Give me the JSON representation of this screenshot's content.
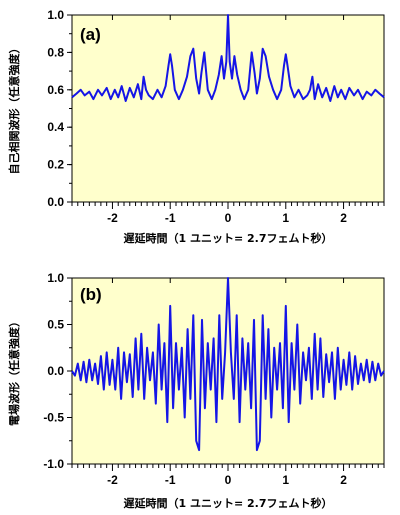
{
  "chart_data": [
    {
      "type": "line",
      "panel_label": "(a)",
      "xlabel": "遅延時間（1 ユニット= 2.7フェムト秒）",
      "ylabel": "自己相関波形（任意強度）",
      "xlim": [
        -2.7,
        2.7
      ],
      "ylim": [
        0.0,
        1.0
      ],
      "x_ticks": [
        -2,
        -1,
        0,
        1,
        2
      ],
      "y_ticks": [
        "0.0",
        "0.2",
        "0.4",
        "0.6",
        "0.8",
        "1.0"
      ],
      "x_tick_labels": [
        "-2",
        "-1",
        "0",
        "1",
        "2"
      ],
      "plot_bg": "#ffffcc",
      "line_color": "#1515e6",
      "grid": false,
      "series": [
        {
          "x": [
            -2.7,
            -2.62,
            -2.55,
            -2.48,
            -2.4,
            -2.33,
            -2.25,
            -2.18,
            -2.1,
            -2.03,
            -1.96,
            -1.9,
            -1.84,
            -1.77,
            -1.7,
            -1.63,
            -1.56,
            -1.5,
            -1.46,
            -1.42,
            -1.37,
            -1.3,
            -1.22,
            -1.15,
            -1.08,
            -1.03,
            -1.0,
            -0.97,
            -0.92,
            -0.85,
            -0.78,
            -0.71,
            -0.65,
            -0.6,
            -0.55,
            -0.5,
            -0.46,
            -0.41,
            -0.35,
            -0.28,
            -0.22,
            -0.16,
            -0.11,
            -0.07,
            -0.03,
            0.0,
            0.03,
            0.07,
            0.11,
            0.16,
            0.22,
            0.28,
            0.35,
            0.41,
            0.46,
            0.5,
            0.55,
            0.6,
            0.65,
            0.71,
            0.78,
            0.85,
            0.92,
            0.97,
            1.0,
            1.03,
            1.08,
            1.15,
            1.22,
            1.3,
            1.37,
            1.42,
            1.46,
            1.5,
            1.56,
            1.63,
            1.7,
            1.77,
            1.84,
            1.9,
            1.96,
            2.03,
            2.1,
            2.18,
            2.25,
            2.33,
            2.4,
            2.48,
            2.55,
            2.62,
            2.7
          ],
          "y": [
            0.56,
            0.58,
            0.6,
            0.57,
            0.59,
            0.55,
            0.6,
            0.57,
            0.61,
            0.55,
            0.6,
            0.56,
            0.62,
            0.54,
            0.61,
            0.56,
            0.63,
            0.55,
            0.67,
            0.6,
            0.57,
            0.55,
            0.6,
            0.56,
            0.62,
            0.73,
            0.79,
            0.73,
            0.6,
            0.55,
            0.6,
            0.67,
            0.78,
            0.82,
            0.66,
            0.58,
            0.69,
            0.8,
            0.6,
            0.55,
            0.6,
            0.68,
            0.78,
            0.66,
            0.75,
            1.0,
            0.75,
            0.66,
            0.78,
            0.68,
            0.6,
            0.55,
            0.6,
            0.8,
            0.69,
            0.58,
            0.66,
            0.82,
            0.78,
            0.67,
            0.6,
            0.55,
            0.6,
            0.73,
            0.79,
            0.73,
            0.62,
            0.56,
            0.6,
            0.55,
            0.57,
            0.6,
            0.67,
            0.55,
            0.63,
            0.56,
            0.61,
            0.54,
            0.62,
            0.56,
            0.6,
            0.55,
            0.61,
            0.57,
            0.6,
            0.55,
            0.59,
            0.57,
            0.6,
            0.58,
            0.56
          ]
        }
      ]
    },
    {
      "type": "line",
      "panel_label": "(b)",
      "xlabel": "遅延時間（1 ユニット= 2.7フェムト秒）",
      "ylabel": "電場波形（任意強度）",
      "xlim": [
        -2.7,
        2.7
      ],
      "ylim": [
        -1.0,
        1.0
      ],
      "x_ticks": [
        -2,
        -1,
        0,
        1,
        2
      ],
      "y_ticks": [
        "-1.0",
        "-0.5",
        "0.0",
        "0.5",
        "1.0"
      ],
      "x_tick_labels": [
        "-2",
        "-1",
        "0",
        "1",
        "2"
      ],
      "plot_bg": "#ffffcc",
      "line_color": "#1515e6",
      "grid": false,
      "series": [
        {
          "x": [
            -2.7,
            -2.65,
            -2.6,
            -2.55,
            -2.5,
            -2.45,
            -2.4,
            -2.35,
            -2.3,
            -2.25,
            -2.2,
            -2.15,
            -2.1,
            -2.05,
            -2.0,
            -1.95,
            -1.9,
            -1.85,
            -1.8,
            -1.75,
            -1.7,
            -1.65,
            -1.6,
            -1.55,
            -1.5,
            -1.45,
            -1.4,
            -1.35,
            -1.3,
            -1.25,
            -1.2,
            -1.15,
            -1.1,
            -1.05,
            -1.0,
            -0.95,
            -0.9,
            -0.85,
            -0.8,
            -0.75,
            -0.7,
            -0.65,
            -0.6,
            -0.55,
            -0.5,
            -0.45,
            -0.4,
            -0.35,
            -0.3,
            -0.25,
            -0.2,
            -0.15,
            -0.1,
            -0.05,
            0.0,
            0.05,
            0.1,
            0.15,
            0.2,
            0.25,
            0.3,
            0.35,
            0.4,
            0.45,
            0.5,
            0.55,
            0.6,
            0.65,
            0.7,
            0.75,
            0.8,
            0.85,
            0.9,
            0.95,
            1.0,
            1.05,
            1.1,
            1.15,
            1.2,
            1.25,
            1.3,
            1.35,
            1.4,
            1.45,
            1.5,
            1.55,
            1.6,
            1.65,
            1.7,
            1.75,
            1.8,
            1.85,
            1.9,
            1.95,
            2.0,
            2.05,
            2.1,
            2.15,
            2.2,
            2.25,
            2.3,
            2.35,
            2.4,
            2.45,
            2.5,
            2.55,
            2.6,
            2.65,
            2.7
          ],
          "y": [
            0.0,
            -0.05,
            0.08,
            -0.1,
            0.1,
            -0.12,
            0.12,
            -0.1,
            0.08,
            -0.14,
            0.16,
            -0.2,
            0.2,
            -0.15,
            0.12,
            -0.2,
            0.25,
            -0.3,
            0.2,
            -0.12,
            0.18,
            -0.28,
            0.35,
            -0.2,
            0.4,
            -0.3,
            0.25,
            -0.1,
            0.2,
            -0.35,
            0.5,
            -0.2,
            0.3,
            -0.55,
            0.7,
            -0.4,
            0.3,
            -0.2,
            0.25,
            -0.5,
            0.45,
            -0.3,
            0.6,
            -0.75,
            -0.85,
            0.55,
            -0.4,
            0.3,
            -0.2,
            0.35,
            -0.55,
            0.6,
            -0.3,
            0.2,
            1.0,
            0.2,
            -0.3,
            0.6,
            -0.55,
            0.35,
            -0.2,
            0.3,
            -0.4,
            0.55,
            -0.85,
            -0.75,
            0.6,
            -0.3,
            0.45,
            -0.5,
            0.25,
            -0.2,
            0.3,
            -0.4,
            0.7,
            -0.55,
            0.3,
            -0.2,
            0.5,
            -0.35,
            0.2,
            -0.1,
            0.25,
            -0.3,
            0.4,
            -0.2,
            0.35,
            -0.28,
            0.18,
            -0.12,
            0.2,
            -0.3,
            0.25,
            -0.2,
            0.12,
            -0.15,
            0.2,
            -0.2,
            0.16,
            -0.14,
            0.08,
            -0.1,
            0.12,
            -0.12,
            0.1,
            -0.1,
            0.08,
            -0.05,
            0.0
          ]
        }
      ]
    }
  ]
}
